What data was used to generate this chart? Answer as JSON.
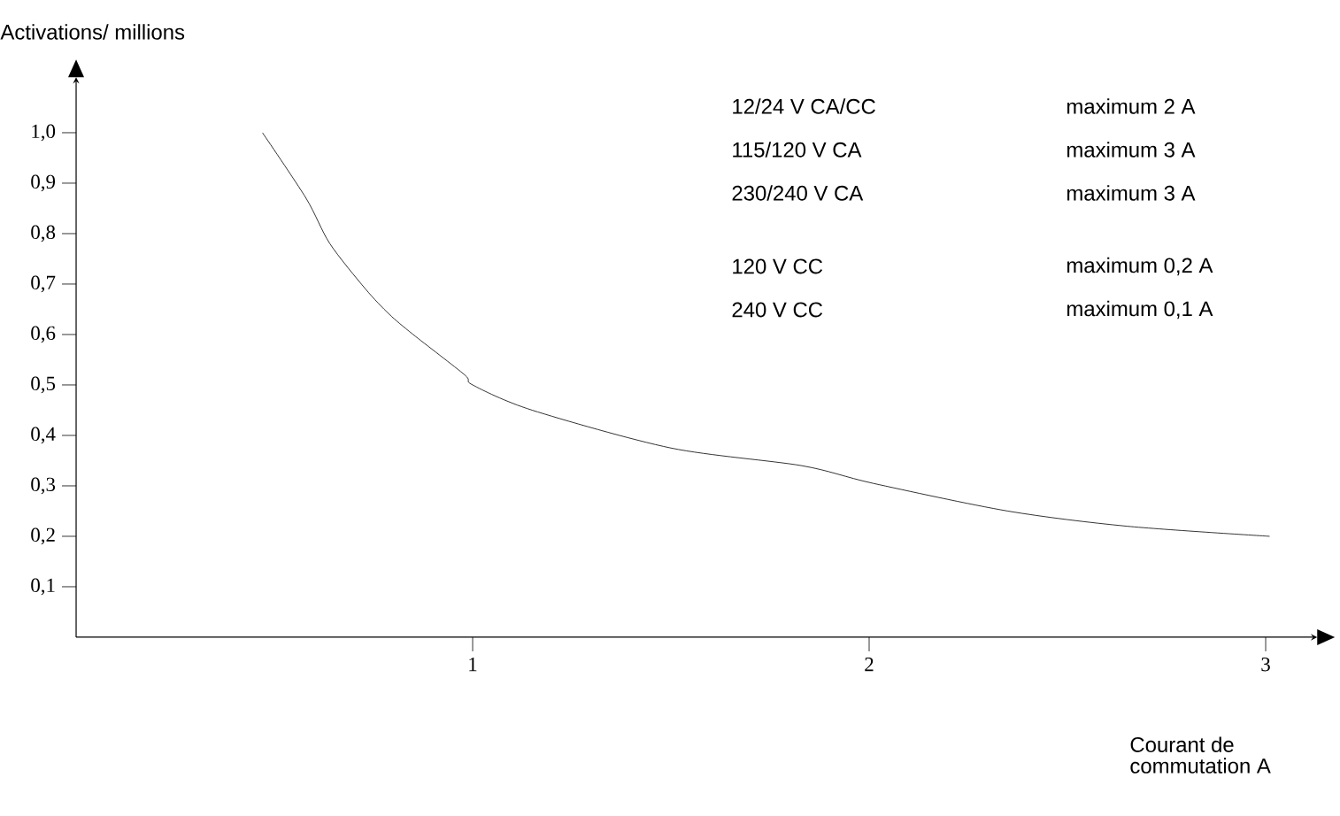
{
  "chart_data": {
    "type": "line",
    "xlabel": "Courant de commutation A",
    "ylabel": "Activations/ millions",
    "x": [
      0.47,
      0.58,
      0.64,
      0.73,
      0.79,
      0.85,
      0.98,
      1.0,
      1.15,
      1.5,
      1.83,
      2.01,
      2.35,
      2.65,
      3.01
    ],
    "series": [
      {
        "color": "#000000",
        "values": [
          1.0,
          0.87,
          0.78,
          0.69,
          0.64,
          0.6,
          0.52,
          0.5,
          0.45,
          0.375,
          0.34,
          0.305,
          0.25,
          0.22,
          0.2
        ]
      }
    ],
    "xlim": [
      0,
      3.13
    ],
    "ylim": [
      0,
      1.11
    ],
    "xticks": [
      1,
      2,
      3
    ],
    "yticks": [
      {
        "value": 0.1,
        "label": "0,1"
      },
      {
        "value": 0.2,
        "label": "0,2"
      },
      {
        "value": 0.3,
        "label": "0,3"
      },
      {
        "value": 0.4,
        "label": "0,4"
      },
      {
        "value": 0.5,
        "label": "0,5"
      },
      {
        "value": 0.6,
        "label": "0,6"
      },
      {
        "value": 0.7,
        "label": "0,7"
      },
      {
        "value": 0.8,
        "label": "0,8"
      },
      {
        "value": 0.9,
        "label": "0,9"
      },
      {
        "value": 1.0,
        "label": "1,0"
      }
    ],
    "grid": false,
    "annotations": [
      "12/24 V CA/CC",
      "maximum 2 A",
      "115/120 V CA",
      "maximum 3 A",
      "230/240 V CA",
      "maximum 3 A",
      "120 V CC",
      "maximum 0,2 A",
      "240 V CC",
      "maximum 0,1 A"
    ]
  }
}
